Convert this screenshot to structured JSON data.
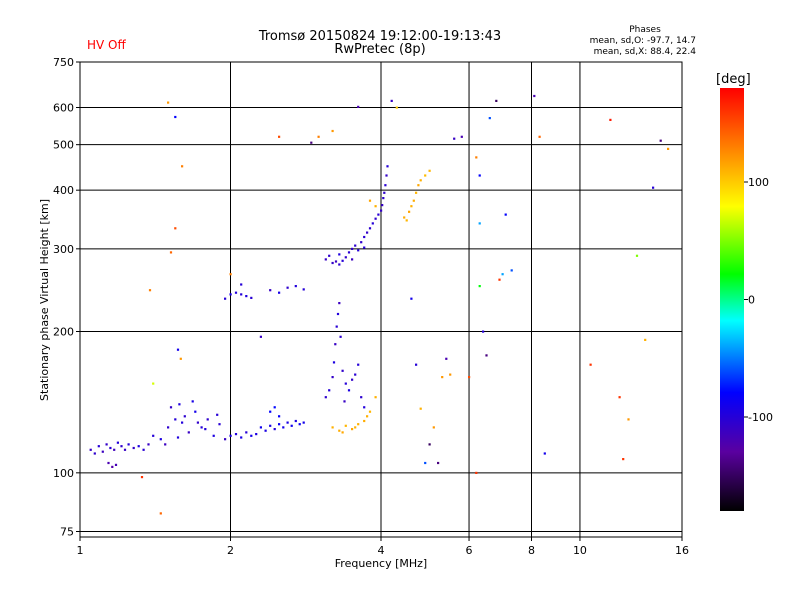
{
  "header": {
    "hv_status": "HV Off",
    "title_line1": "Tromsø 20150824 19:12:00-19:13:43",
    "title_line2": "RwPretec (8p)",
    "stats_title": "Phases",
    "stats_o": "mean, sd,O: -97.7, 14.7",
    "stats_x": "mean, sd,X: 88.4, 22.4"
  },
  "chart_data": {
    "type": "scatter",
    "xlabel": "Frequency [MHz]",
    "ylabel": "Stationary phase Virtual Height [km]",
    "x_scale": "log",
    "y_scale": "log",
    "xlim": [
      1,
      16
    ],
    "ylim": [
      73,
      750
    ],
    "x_ticks": [
      1,
      2,
      4,
      6,
      8,
      10,
      16
    ],
    "x_tick_labels": [
      "1",
      "2",
      "4",
      "6",
      "8",
      "10",
      "16"
    ],
    "y_ticks": [
      75,
      100,
      200,
      300,
      400,
      500,
      600,
      750
    ],
    "y_tick_labels": [
      "75",
      "100",
      "200",
      "300",
      "400",
      "500",
      "600",
      "750"
    ],
    "grid": true,
    "colorbar": {
      "label": "[deg]",
      "range": [
        -180,
        180
      ],
      "ticks": [
        100,
        0,
        -100
      ],
      "tick_labels": [
        "100",
        "0",
        "-100"
      ]
    },
    "points": [
      [
        1.05,
        112,
        -110
      ],
      [
        1.07,
        110,
        -105
      ],
      [
        1.09,
        114,
        -100
      ],
      [
        1.11,
        111,
        -112
      ],
      [
        1.13,
        115,
        -108
      ],
      [
        1.15,
        113,
        -102
      ],
      [
        1.17,
        112,
        -115
      ],
      [
        1.19,
        116,
        -98
      ],
      [
        1.21,
        114,
        -105
      ],
      [
        1.23,
        112,
        -110
      ],
      [
        1.25,
        115,
        -100
      ],
      [
        1.28,
        113,
        -108
      ],
      [
        1.31,
        114,
        -95
      ],
      [
        1.34,
        112,
        -102
      ],
      [
        1.37,
        115,
        -110
      ],
      [
        1.14,
        105,
        -120
      ],
      [
        1.16,
        103,
        -125
      ],
      [
        1.18,
        104,
        -118
      ],
      [
        1.4,
        120,
        -100
      ],
      [
        1.45,
        118,
        -95
      ],
      [
        1.5,
        125,
        -105
      ],
      [
        1.55,
        130,
        -100
      ],
      [
        1.6,
        128,
        -98
      ],
      [
        1.65,
        122,
        -110
      ],
      [
        1.7,
        135,
        -90
      ],
      [
        1.75,
        125,
        -100
      ],
      [
        1.8,
        130,
        -105
      ],
      [
        1.85,
        120,
        -95
      ],
      [
        1.9,
        127,
        -102
      ],
      [
        1.95,
        118,
        -110
      ],
      [
        1.52,
        138,
        -108
      ],
      [
        1.58,
        140,
        -96
      ],
      [
        1.62,
        132,
        -104
      ],
      [
        1.68,
        142,
        -92
      ],
      [
        1.72,
        128,
        -106
      ],
      [
        1.78,
        124,
        -99
      ],
      [
        1.88,
        133,
        -101
      ],
      [
        1.48,
        115,
        -112
      ],
      [
        1.57,
        119,
        -97
      ],
      [
        2.0,
        120,
        -95
      ],
      [
        2.05,
        121,
        -98
      ],
      [
        2.1,
        119,
        -92
      ],
      [
        2.15,
        122,
        -100
      ],
      [
        2.2,
        120,
        -90
      ],
      [
        2.25,
        121,
        -96
      ],
      [
        2.3,
        125,
        -88
      ],
      [
        2.35,
        123,
        -94
      ],
      [
        2.4,
        126,
        -92
      ],
      [
        2.45,
        124,
        -98
      ],
      [
        2.5,
        127,
        -85
      ],
      [
        2.55,
        125,
        -90
      ],
      [
        2.6,
        128,
        -93
      ],
      [
        2.65,
        126,
        -88
      ],
      [
        2.7,
        129,
        -95
      ],
      [
        2.75,
        127,
        -86
      ],
      [
        2.8,
        128,
        -90
      ],
      [
        2.4,
        135,
        -80
      ],
      [
        2.45,
        138,
        -78
      ],
      [
        2.5,
        132,
        -82
      ],
      [
        3.1,
        145,
        -105
      ],
      [
        3.15,
        150,
        -100
      ],
      [
        3.2,
        160,
        -108
      ],
      [
        3.22,
        172,
        -95
      ],
      [
        3.24,
        188,
        -110
      ],
      [
        3.26,
        205,
        -102
      ],
      [
        3.28,
        218,
        -98
      ],
      [
        3.3,
        230,
        -112
      ],
      [
        3.32,
        195,
        -104
      ],
      [
        3.35,
        165,
        -106
      ],
      [
        3.4,
        155,
        -100
      ],
      [
        3.45,
        150,
        -95
      ],
      [
        3.5,
        158,
        -108
      ],
      [
        3.55,
        162,
        -102
      ],
      [
        3.6,
        170,
        -100
      ],
      [
        3.65,
        145,
        -104
      ],
      [
        3.7,
        138,
        -98
      ],
      [
        3.38,
        142,
        -110
      ],
      [
        3.2,
        125,
        110
      ],
      [
        3.3,
        123,
        112
      ],
      [
        3.4,
        126,
        108
      ],
      [
        3.5,
        124,
        115
      ],
      [
        3.6,
        127,
        110
      ],
      [
        3.7,
        129,
        112
      ],
      [
        3.8,
        135,
        108
      ],
      [
        3.9,
        145,
        110
      ],
      [
        3.35,
        122,
        114
      ],
      [
        3.55,
        125,
        109
      ],
      [
        3.75,
        132,
        111
      ],
      [
        3.1,
        285,
        -110
      ],
      [
        3.15,
        290,
        -105
      ],
      [
        3.2,
        280,
        -108
      ],
      [
        3.25,
        282,
        -112
      ],
      [
        3.3,
        278,
        -104
      ],
      [
        3.35,
        283,
        -100
      ],
      [
        3.4,
        288,
        -106
      ],
      [
        3.45,
        295,
        -102
      ],
      [
        3.5,
        300,
        -108
      ],
      [
        3.55,
        305,
        -104
      ],
      [
        3.6,
        298,
        -100
      ],
      [
        3.65,
        310,
        -106
      ],
      [
        3.7,
        318,
        -102
      ],
      [
        3.75,
        325,
        -108
      ],
      [
        3.8,
        332,
        -104
      ],
      [
        3.85,
        340,
        -100
      ],
      [
        3.9,
        348,
        -106
      ],
      [
        3.95,
        355,
        -102
      ],
      [
        4.0,
        362,
        -108
      ],
      [
        4.02,
        372,
        -110
      ],
      [
        4.04,
        385,
        -104
      ],
      [
        4.06,
        395,
        -106
      ],
      [
        4.08,
        410,
        -102
      ],
      [
        4.1,
        430,
        -108
      ],
      [
        4.12,
        450,
        -100
      ],
      [
        3.3,
        292,
        -96
      ],
      [
        3.5,
        285,
        -112
      ],
      [
        3.7,
        302,
        -98
      ],
      [
        4.45,
        350,
        112
      ],
      [
        4.5,
        345,
        108
      ],
      [
        4.55,
        360,
        115
      ],
      [
        4.6,
        370,
        110
      ],
      [
        4.65,
        380,
        112
      ],
      [
        4.7,
        395,
        108
      ],
      [
        4.75,
        410,
        114
      ],
      [
        4.8,
        420,
        110
      ],
      [
        4.9,
        430,
        106
      ],
      [
        5.0,
        440,
        108
      ],
      [
        1.95,
        235,
        -100
      ],
      [
        2.0,
        240,
        -95
      ],
      [
        2.05,
        242,
        -98
      ],
      [
        2.1,
        240,
        -100
      ],
      [
        2.15,
        238,
        -96
      ],
      [
        2.2,
        236,
        -102
      ],
      [
        2.4,
        245,
        -110
      ],
      [
        2.5,
        242,
        -92
      ],
      [
        2.6,
        248,
        -105
      ],
      [
        2.7,
        250,
        -98
      ],
      [
        2.8,
        246,
        -100
      ],
      [
        1.5,
        615,
        120
      ],
      [
        1.55,
        573,
        -80
      ],
      [
        1.6,
        450,
        130
      ],
      [
        1.55,
        332,
        150
      ],
      [
        1.52,
        295,
        140
      ],
      [
        1.57,
        183,
        -90
      ],
      [
        1.59,
        175,
        120
      ],
      [
        1.4,
        155,
        70
      ],
      [
        1.38,
        245,
        130
      ],
      [
        1.45,
        82,
        140
      ],
      [
        1.33,
        98,
        160
      ],
      [
        2.0,
        265,
        130
      ],
      [
        2.1,
        252,
        -100
      ],
      [
        2.3,
        195,
        -110
      ],
      [
        2.5,
        520,
        150
      ],
      [
        2.9,
        505,
        -140
      ],
      [
        3.0,
        520,
        130
      ],
      [
        3.2,
        535,
        120
      ],
      [
        3.6,
        602,
        -120
      ],
      [
        3.8,
        380,
        115
      ],
      [
        3.9,
        370,
        110
      ],
      [
        4.2,
        620,
        -110
      ],
      [
        4.3,
        600,
        100
      ],
      [
        4.6,
        235,
        -90
      ],
      [
        4.7,
        170,
        -100
      ],
      [
        4.8,
        137,
        110
      ],
      [
        4.9,
        105,
        -60
      ],
      [
        5.0,
        115,
        -150
      ],
      [
        5.1,
        125,
        120
      ],
      [
        5.2,
        105,
        -140
      ],
      [
        5.3,
        160,
        120
      ],
      [
        5.4,
        175,
        -120
      ],
      [
        5.5,
        162,
        120
      ],
      [
        5.6,
        515,
        -110
      ],
      [
        5.8,
        520,
        -120
      ],
      [
        6.0,
        160,
        150
      ],
      [
        6.2,
        100,
        160
      ],
      [
        6.2,
        470,
        130
      ],
      [
        6.3,
        430,
        -80
      ],
      [
        6.3,
        340,
        -40
      ],
      [
        6.3,
        250,
        20
      ],
      [
        6.4,
        200,
        -100
      ],
      [
        6.5,
        178,
        -140
      ],
      [
        6.6,
        570,
        -60
      ],
      [
        6.8,
        620,
        -150
      ],
      [
        6.9,
        258,
        160
      ],
      [
        7.0,
        265,
        -40
      ],
      [
        7.1,
        355,
        -80
      ],
      [
        7.3,
        270,
        -60
      ],
      [
        8.1,
        635,
        -120
      ],
      [
        8.3,
        520,
        140
      ],
      [
        8.5,
        110,
        -90
      ],
      [
        10.5,
        170,
        160
      ],
      [
        11.5,
        565,
        170
      ],
      [
        12.0,
        145,
        160
      ],
      [
        12.2,
        107,
        160
      ],
      [
        12.5,
        130,
        120
      ],
      [
        13.0,
        290,
        50
      ],
      [
        13.5,
        192,
        110
      ],
      [
        14.0,
        405,
        -100
      ],
      [
        14.5,
        510,
        -140
      ],
      [
        15.0,
        490,
        120
      ]
    ]
  }
}
